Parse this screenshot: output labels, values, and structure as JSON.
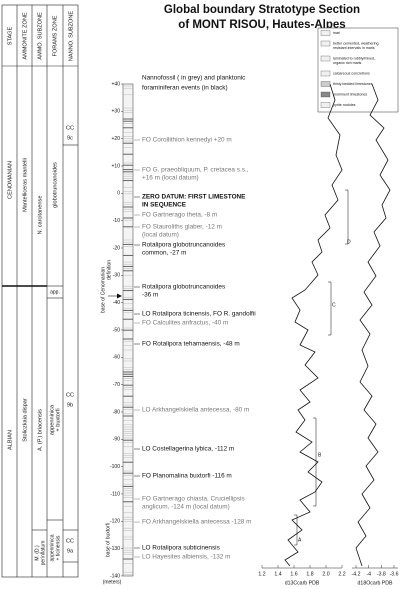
{
  "title": [
    "Global boundary Stratotype Section",
    "of MONT RISOU, Hautes-Alpes"
  ],
  "table": {
    "headers": [
      "STAGE",
      "AMMONITE ZONE",
      "AMMO. SUBZONE",
      "FORAMS ZONE",
      "NANNO. SUBZONE"
    ],
    "stage": [
      "CENOMANIAN",
      "ALBIAN"
    ],
    "ammonite_zone": [
      "Mantelliceras mantelli",
      "Stoliczkaia dispar"
    ],
    "ammo_subzone": [
      "N. carcitanense",
      "A. (P.) briacensis",
      "M. (D.)",
      "perinflatum"
    ],
    "forams_zone": [
      "globotruncanoides",
      "app.",
      "appenninica",
      "+ buxtorfi",
      "appenninica",
      "+ ticinensis"
    ],
    "nanno_subzone": [
      [
        "CC",
        "9c"
      ],
      [
        "CC",
        "9b"
      ],
      [
        "CC",
        "9a"
      ]
    ]
  },
  "events_header": [
    "Nannofossil ( in grey) and planktonic",
    "foraminiferan events (in black)"
  ],
  "events": [
    {
      "lines": [
        "FO Corollithion kennedyi +20 m"
      ],
      "color": "grey"
    },
    {
      "lines": [
        "FO G. praeobliquum, P. cretacea s.s.,",
        "+16 m (local datum)"
      ],
      "color": "grey"
    },
    {
      "lines": [
        "ZERO DATUM: FIRST LIMESTONE",
        "IN SEQUENCE"
      ],
      "color": "black"
    },
    {
      "lines": [
        "FO Gartnerago theta, -8 m"
      ],
      "color": "grey"
    },
    {
      "lines": [
        "FO Stauroliths glaber, -12 m",
        "(local datum)"
      ],
      "color": "grey"
    },
    {
      "lines": [
        "Rotalipora globotruncanoides",
        "common, -27 m"
      ],
      "color": "black"
    },
    {
      "lines": [
        "Rotalipora globotruncanoides",
        "-36 m"
      ],
      "color": "black"
    },
    {
      "lines": [
        "LO Rotalipora ticinensis, FO R. gandolfii"
      ],
      "color": "black"
    },
    {
      "lines": [
        "FO Calculites anfractus, -40 m"
      ],
      "color": "grey"
    },
    {
      "lines": [
        "FO Rotalipora tehamaensis, -48 m"
      ],
      "color": "black"
    },
    {
      "lines": [
        "LO Arkhangelskiella antecessa, -80 m"
      ],
      "color": "grey"
    },
    {
      "lines": [
        "LO Costellagerina lybica, -112 m"
      ],
      "color": "black"
    },
    {
      "lines": [
        "FO Planomalina buxtorfi -116 m"
      ],
      "color": "black"
    },
    {
      "lines": [
        "FO Gartnerago chiasta, Cruciellipsis",
        "anglicum, -124 m (local datum)"
      ],
      "color": "grey"
    },
    {
      "lines": [
        "FO Arkhangelskiella antecessa -128 m"
      ],
      "color": "grey"
    },
    {
      "lines": [
        "LO Rotalipora subticinensis"
      ],
      "color": "black"
    },
    {
      "lines": [
        "LO Hayesites albiensis, -132 m"
      ],
      "color": "grey"
    }
  ],
  "depth_ticks": [
    "+40",
    "+30",
    "+20",
    "+10",
    "0",
    "-10",
    "-20",
    "-30",
    "-40",
    "-50",
    "-60",
    "-70",
    "-80",
    "-90",
    "-100",
    "-110",
    "-120",
    "-130",
    "-140"
  ],
  "depth_unit": "(meters)",
  "side_notes": [
    "base of Cenomanian",
    "definition",
    "base of buxtorfi"
  ],
  "legend": [
    {
      "lines": [
        "marl"
      ]
    },
    {
      "lines": [
        "better cemented, weathering",
        "resistant intervals in marls"
      ]
    },
    {
      "lines": [
        "laminated to rubbly/mixed,",
        "organic rich marls"
      ]
    },
    {
      "lines": [
        "calcareous concretions"
      ]
    },
    {
      "lines": [
        "thinly bedded limestones"
      ]
    },
    {
      "lines": [
        "prominent limestones"
      ]
    },
    {
      "lines": [
        "pyrite nodules"
      ]
    }
  ],
  "curve_letters": [
    "A",
    "B",
    "C",
    "D"
  ],
  "carbon_axis": {
    "ticks": [
      "1.2",
      "1.4",
      "1.6",
      "1.8",
      "2.0",
      "2.2"
    ],
    "label": "d13Ccarb PDB"
  },
  "oxygen_axis": {
    "ticks": [
      "-4.2",
      "-4",
      "-3.8",
      "-3.6"
    ],
    "label": "d18Ocarb PDB"
  }
}
